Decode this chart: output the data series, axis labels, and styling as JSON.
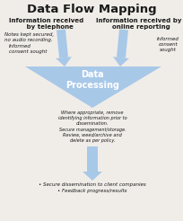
{
  "title": "Data Flow Mapping",
  "title_fontsize": 9.5,
  "title_fontweight": "bold",
  "bg_color": "#f0ede8",
  "arrow_color": "#a8c8e8",
  "text_color": "#1a1a1a",
  "left_header": "Information received\n   by telephone",
  "right_header": "Information received by\n  online reporting",
  "left_note1": "Notes kept secured,\nno audio recording.",
  "left_note2": "Informed\nconsent sought",
  "right_note": "Informed\nconsent\nsought",
  "center_label": "Data\nProcessing",
  "center_text": "Where appropriate, remove\nidentifying information prior to\ndissemination.\nSecure management/storage.\nReview, weed/archive and\ndelete as per policy.",
  "bottom_bullets": "• Secure dissemination to client companies\n• Feedback progress/results",
  "figsize": [
    2.05,
    2.46
  ],
  "dpi": 100
}
